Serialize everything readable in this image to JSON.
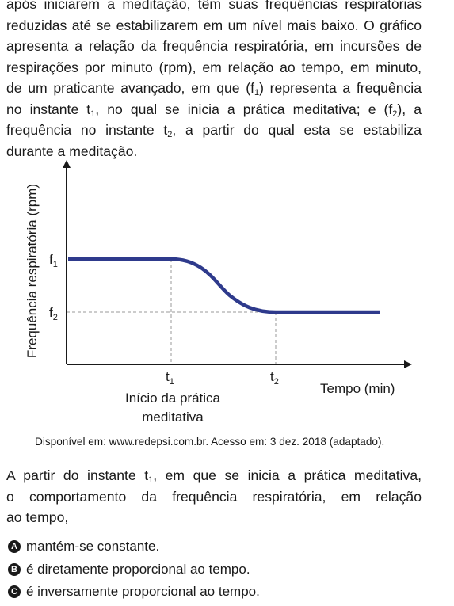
{
  "intro": {
    "lines": [
      "após iniciarem a meditação, têm suas frequências respiratórias",
      "reduzidas até se estabilizarem em um nível mais baixo. O gráfico",
      "apresenta a relação da frequência respiratória, em incursões de",
      "respirações por minuto (rpm), em relação ao tempo, em minuto,"
    ],
    "l5a": "de um praticante avançado, em que (f",
    "l5sub": "1",
    "l5b": ") representa a frequência",
    "l6a": "no instante t",
    "l6sub1": "1",
    "l6b": ", no qual se inicia a prática meditativa; e (f",
    "l6sub2": "2",
    "l6c": "), a",
    "l7a": "frequência no instante t",
    "l7sub": "2",
    "l7b": ", a partir do qual esta se estabiliza",
    "l8": "durante a meditação."
  },
  "chart_data": {
    "type": "line",
    "ylabel": "Frequência respiratória (rpm)",
    "xlabel": "Tempo (min)",
    "y_ticks": [
      {
        "label": "f",
        "sub": "1"
      },
      {
        "label": "f",
        "sub": "2"
      }
    ],
    "x_ticks": [
      {
        "label": "t",
        "sub": "1"
      },
      {
        "label": "t",
        "sub": "2"
      }
    ],
    "annotation": [
      "Início da prática",
      "meditativa"
    ],
    "series": [
      {
        "points": [
          {
            "x": "0",
            "y": "f1"
          },
          {
            "x": "t1",
            "y": "f1"
          },
          {
            "x": "t2",
            "y": "f2"
          },
          {
            "x": "end",
            "y": "f2"
          }
        ],
        "shape": "constant at f1 until t1, smooth decrease to f2 at t2, then constant"
      }
    ],
    "gridlines": "dashed guides from f2 and at t1 and t2",
    "line_color": "#2e3a8c"
  },
  "source": "Disponível em: www.redepsi.com.br. Acesso em: 3 dez. 2018 (adaptado).",
  "question": {
    "l1a": "A partir do instante t",
    "l1sub": "1",
    "l1b": ", em que se inicia a prática meditativa,",
    "l2": "o comportamento da frequência respiratória, em relação",
    "l3": "ao tempo,"
  },
  "options": [
    {
      "letter": "A",
      "text": "mantém-se constante."
    },
    {
      "letter": "B",
      "text": "é diretamente proporcional ao tempo."
    },
    {
      "letter": "C",
      "text": "é inversamente proporcional ao tempo."
    }
  ]
}
